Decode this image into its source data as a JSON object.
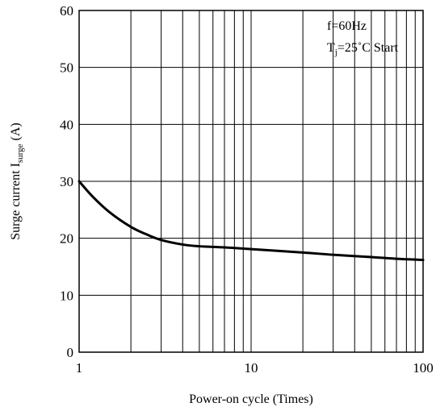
{
  "chart_data": {
    "type": "line",
    "xlabel": "Power-on cycle (Times)",
    "ylabel_main": "Surge current I",
    "ylabel_sub": "surge",
    "ylabel_unit": " (A)",
    "x_scale": "log",
    "xlim": [
      1,
      100
    ],
    "ylim": [
      0,
      60
    ],
    "x_ticks": [
      "1",
      "10",
      "100"
    ],
    "x_tick_values": [
      1,
      10,
      100
    ],
    "y_ticks": [
      "0",
      "10",
      "20",
      "30",
      "40",
      "50",
      "60"
    ],
    "y_tick_values": [
      0,
      10,
      20,
      30,
      40,
      50,
      60
    ],
    "grid": true,
    "annotation": {
      "line1": "f=60Hz",
      "line2_main": "T",
      "line2_sub": "j",
      "line2_rest": "=25˚C Start",
      "placement": "top-right"
    },
    "series": [
      {
        "x": [
          1,
          1.2,
          1.5,
          2,
          2.5,
          3,
          4,
          5,
          7,
          10,
          20,
          30,
          50,
          70,
          100
        ],
        "y": [
          30,
          27.3,
          24.6,
          22,
          20.6,
          19.7,
          18.9,
          18.6,
          18.4,
          18.1,
          17.5,
          17.1,
          16.7,
          16.4,
          16.2
        ]
      }
    ]
  }
}
